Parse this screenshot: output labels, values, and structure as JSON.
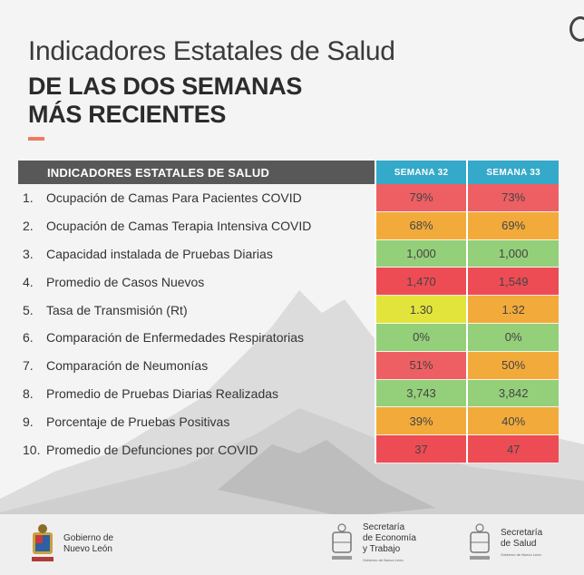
{
  "header": {
    "title_line1": "Indicadores Estatales de Salud",
    "title_line2": "DE LAS DOS SEMANAS",
    "title_line3": "MÁS RECIENTES"
  },
  "table": {
    "header_label": "INDICADORES ESTATALES DE SALUD",
    "week_headers": [
      "SEMANA 32",
      "SEMANA 33"
    ],
    "rows": [
      {
        "num": "1.",
        "label": "Ocupación de Camas Para Pacientes COVID",
        "w32": "79%",
        "w33": "73%",
        "c32": "#ee5f63",
        "c33": "#ee5f63"
      },
      {
        "num": "2.",
        "label": "Ocupación de Camas Terapia Intensiva COVID",
        "w32": "68%",
        "w33": "69%",
        "c32": "#f2ab3b",
        "c33": "#f2ab3b"
      },
      {
        "num": "3.",
        "label": "Capacidad instalada de Pruebas Diarias",
        "w32": "1,000",
        "w33": "1,000",
        "c32": "#94cf7a",
        "c33": "#94cf7a"
      },
      {
        "num": "4.",
        "label": "Promedio de Casos Nuevos",
        "w32": "1,470",
        "w33": "1,549",
        "c32": "#ee4c55",
        "c33": "#ee4c55"
      },
      {
        "num": "5.",
        "label": "Tasa de Transmisión (Rt)",
        "w32": "1.30",
        "w33": "1.32",
        "c32": "#e2e43c",
        "c33": "#f2ab3b"
      },
      {
        "num": "6.",
        "label": "Comparación de Enfermedades Respiratorias",
        "w32": "0%",
        "w33": "0%",
        "c32": "#94cf7a",
        "c33": "#94cf7a"
      },
      {
        "num": "7.",
        "label": "Comparación de Neumonías",
        "w32": "51%",
        "w33": "50%",
        "c32": "#ee5f63",
        "c33": "#f2ab3b"
      },
      {
        "num": "8.",
        "label": "Promedio de Pruebas Diarias Realizadas",
        "w32": "3,743",
        "w33": "3,842",
        "c32": "#94cf7a",
        "c33": "#94cf7a"
      },
      {
        "num": "9.",
        "label": "Porcentaje de Pruebas Positivas",
        "w32": "39%",
        "w33": "40%",
        "c32": "#f2ab3b",
        "c33": "#f2ab3b"
      },
      {
        "num": "10.",
        "label": "Promedio de Defunciones por COVID",
        "w32": "37",
        "w33": "47",
        "c32": "#ee4c55",
        "c33": "#ee4c55"
      }
    ]
  },
  "footer": {
    "logo1_line1": "Gobierno de",
    "logo1_line2": "Nuevo León",
    "logo2_line1": "Secretaría",
    "logo2_line2": "de Economía",
    "logo2_line3": "y Trabajo",
    "logo2_small": "Gobierno de Nuevo León",
    "logo3_line1": "Secretaría",
    "logo3_line2": "de Salud",
    "logo3_small": "Gobierno de Nuevo León"
  }
}
